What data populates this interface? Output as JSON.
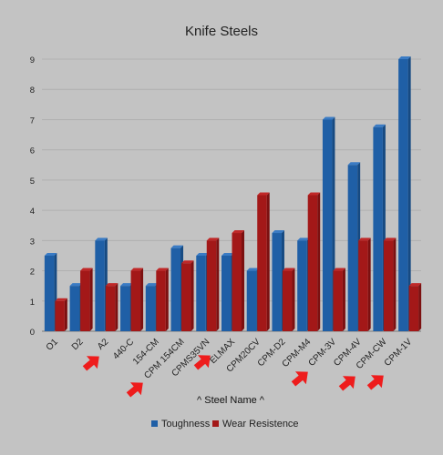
{
  "chart_data": {
    "type": "bar",
    "title": "Knife Steels",
    "xlabel": "^  Steel Name ^",
    "ylabel": "",
    "ylim": [
      0,
      9
    ],
    "yticks": [
      0,
      1,
      2,
      3,
      4,
      5,
      6,
      7,
      8,
      9
    ],
    "grid": true,
    "legend_position": "bottom",
    "categories": [
      "O1",
      "D2",
      "A2",
      "440-C",
      "154-CM",
      "CPM 154CM",
      "CPMS35VN",
      "ELMAX",
      "CPM20CV",
      "CPM-D2",
      "CPM-M4",
      "CPM-3V",
      "CPM-4V",
      "CPM-CW",
      "CPM-1V"
    ],
    "series": [
      {
        "name": "Toughness",
        "color": "#1f5fa6",
        "values": [
          2.5,
          1.5,
          3.0,
          1.5,
          1.5,
          2.75,
          2.5,
          2.5,
          2.0,
          3.25,
          3.0,
          7.0,
          5.5,
          6.75,
          9.0
        ]
      },
      {
        "name": "Wear Resistence",
        "color": "#a31818",
        "values": [
          1.0,
          2.0,
          1.5,
          2.0,
          2.0,
          2.25,
          3.0,
          3.25,
          4.5,
          2.0,
          4.5,
          2.0,
          3.0,
          3.0,
          1.5
        ]
      }
    ],
    "annotations": {
      "marker": "red-arrow-icon",
      "color": "#ee1c1c",
      "highlighted_categories": [
        "A2",
        "CPM 154CM",
        "ELMAX",
        "CPM-M4",
        "CPM-4V",
        "CPM-CW"
      ]
    }
  }
}
